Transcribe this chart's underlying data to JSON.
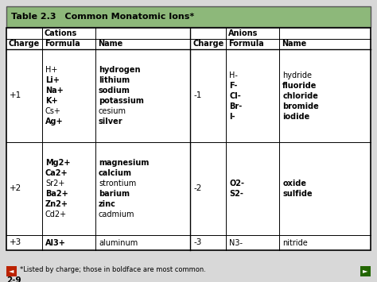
{
  "title": "Table 2.3",
  "title_subtitle": "Common Monatomic Ions",
  "title_asterisk": "*",
  "header_bg": "#8db87a",
  "table_bg": "#ffffff",
  "border_color": "#000000",
  "footer_note": "*Listed by charge; those in boldface are most common.",
  "page_number": "2-9",
  "cations_header": "Cations",
  "anions_header": "Anions",
  "col_header_charge": "Charge",
  "col_header_formula": "Formula",
  "col_header_name": "Name",
  "left_arrow_color": "#bb2200",
  "right_arrow_color": "#226600",
  "fig_bg": "#d8d8d8",
  "cations": [
    {
      "charge": "+1",
      "formulas": [
        "H+",
        "Li+",
        "Na+",
        "K+",
        "Cs+",
        "Ag+"
      ],
      "formula_bold": [
        false,
        true,
        true,
        true,
        false,
        true
      ],
      "names": [
        "hydrogen",
        "lithium",
        "sodium",
        "potassium",
        "cesium",
        "silver"
      ],
      "name_bold": [
        true,
        true,
        true,
        true,
        false,
        true
      ]
    },
    {
      "charge": "+2",
      "formulas": [
        "Mg2+",
        "Ca2+",
        "Sr2+",
        "Ba2+",
        "Zn2+",
        "Cd2+"
      ],
      "formula_bold": [
        true,
        true,
        false,
        true,
        true,
        false
      ],
      "names": [
        "magnesium",
        "calcium",
        "strontium",
        "barium",
        "zinc",
        "cadmium"
      ],
      "name_bold": [
        true,
        true,
        false,
        true,
        true,
        false
      ]
    },
    {
      "charge": "+3",
      "formulas": [
        "Al3+"
      ],
      "formula_bold": [
        true
      ],
      "names": [
        "aluminum"
      ],
      "name_bold": [
        false
      ]
    }
  ],
  "anions": [
    {
      "charge": "-1",
      "formulas": [
        "H-",
        "F-",
        "Cl-",
        "Br-",
        "I-"
      ],
      "formula_bold": [
        false,
        true,
        true,
        true,
        true
      ],
      "names": [
        "hydride",
        "fluoride",
        "chloride",
        "bromide",
        "iodide"
      ],
      "name_bold": [
        false,
        true,
        true,
        true,
        true
      ]
    },
    {
      "charge": "-2",
      "formulas": [
        "O2-",
        "S2-"
      ],
      "formula_bold": [
        true,
        true
      ],
      "names": [
        "oxide",
        "sulfide"
      ],
      "name_bold": [
        true,
        true
      ]
    },
    {
      "charge": "-3",
      "formulas": [
        "N3-"
      ],
      "formula_bold": [
        false
      ],
      "names": [
        "nitride"
      ],
      "name_bold": [
        false
      ]
    }
  ]
}
